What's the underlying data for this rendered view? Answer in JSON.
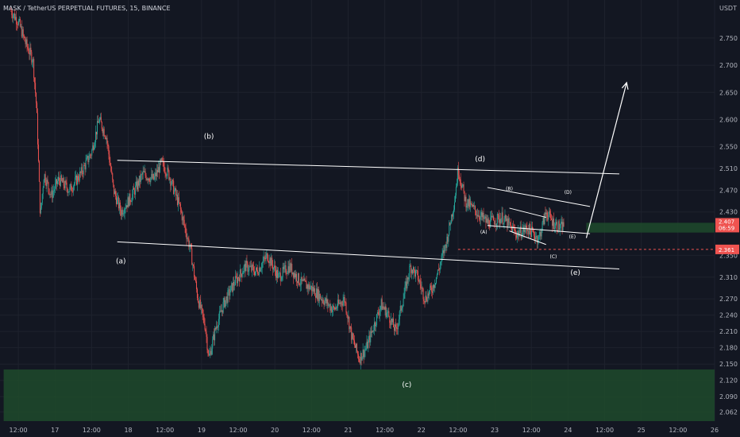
{
  "chart_data": {
    "type": "candlestick",
    "title": "MASK / TetherUS PERPETUAL FUTURES, 15, BINANCE",
    "currency": "USDT",
    "y_ticks": [
      "2.750",
      "2.700",
      "2.650",
      "2.600",
      "2.550",
      "2.510",
      "2.470",
      "2.430",
      "2.350",
      "2.310",
      "2.270",
      "2.240",
      "2.210",
      "2.180",
      "2.150",
      "2.120",
      "2.090",
      "2.062"
    ],
    "x_ticks": [
      "12:00",
      "17",
      "12:00",
      "18",
      "12:00",
      "19",
      "12:00",
      "20",
      "12:00",
      "21",
      "12:00",
      "22",
      "12:00",
      "23",
      "12:00",
      "24",
      "12:00",
      "25",
      "12:00",
      "26"
    ],
    "ylim": [
      2.045,
      2.82
    ],
    "current_price": "2.407",
    "countdown": "06:59",
    "marked_price": "2.361",
    "wave_labels": {
      "major": [
        {
          "text": "(a)",
          "x": 1.4,
          "y": 2.335
        },
        {
          "text": "(b)",
          "x": 2.6,
          "y": 2.565
        },
        {
          "text": "(c)",
          "x": 5.3,
          "y": 2.108
        },
        {
          "text": "(d)",
          "x": 6.3,
          "y": 2.523
        },
        {
          "text": "(e)",
          "x": 7.6,
          "y": 2.314
        }
      ],
      "minor": [
        {
          "text": "(A)",
          "x": 6.35,
          "y": 2.39
        },
        {
          "text": "(B)",
          "x": 6.7,
          "y": 2.47
        },
        {
          "text": "(C)",
          "x": 7.3,
          "y": 2.345
        },
        {
          "text": "(D)",
          "x": 7.5,
          "y": 2.463
        },
        {
          "text": "(E)",
          "x": 7.56,
          "y": 2.381
        }
      ]
    },
    "trendlines": [
      {
        "name": "triangle-upper",
        "from": {
          "x": 1.35,
          "y": 2.525
        },
        "to": {
          "x": 8.2,
          "y": 2.5
        }
      },
      {
        "name": "triangle-lower",
        "from": {
          "x": 1.35,
          "y": 2.375
        },
        "to": {
          "x": 8.2,
          "y": 2.325
        }
      },
      {
        "name": "inner-upper",
        "from": {
          "x": 6.4,
          "y": 2.475
        },
        "to": {
          "x": 7.8,
          "y": 2.44
        }
      },
      {
        "name": "inner-lower",
        "from": {
          "x": 6.4,
          "y": 2.405
        },
        "to": {
          "x": 7.8,
          "y": 2.39
        }
      },
      {
        "name": "small-upper",
        "from": {
          "x": 6.7,
          "y": 2.437
        },
        "to": {
          "x": 7.2,
          "y": 2.42
        }
      },
      {
        "name": "small-lower",
        "from": {
          "x": 6.7,
          "y": 2.395
        },
        "to": {
          "x": 7.2,
          "y": 2.37
        }
      }
    ],
    "projection": [
      {
        "x": 7.75,
        "y": 2.382
      },
      {
        "x": 8.3,
        "y": 2.668
      }
    ],
    "zones": [
      {
        "name": "upper-supply-zone",
        "y_from": 2.392,
        "y_to": 2.41,
        "x_from": 7.75
      },
      {
        "name": "lower-demand-zone",
        "y_from": 2.045,
        "y_to": 2.14,
        "x_from": -0.2
      }
    ],
    "price_path": [
      [
        -0.1,
        2.8
      ],
      [
        0.0,
        2.78
      ],
      [
        0.1,
        2.74
      ],
      [
        0.2,
        2.71
      ],
      [
        0.25,
        2.62
      ],
      [
        0.3,
        2.42
      ],
      [
        0.35,
        2.5
      ],
      [
        0.45,
        2.46
      ],
      [
        0.55,
        2.49
      ],
      [
        0.7,
        2.47
      ],
      [
        0.85,
        2.5
      ],
      [
        1.0,
        2.54
      ],
      [
        1.1,
        2.6
      ],
      [
        1.2,
        2.57
      ],
      [
        1.3,
        2.47
      ],
      [
        1.4,
        2.43
      ],
      [
        1.55,
        2.46
      ],
      [
        1.7,
        2.5
      ],
      [
        1.85,
        2.49
      ],
      [
        1.95,
        2.52
      ],
      [
        2.05,
        2.5
      ],
      [
        2.2,
        2.44
      ],
      [
        2.35,
        2.36
      ],
      [
        2.45,
        2.27
      ],
      [
        2.55,
        2.22
      ],
      [
        2.6,
        2.16
      ],
      [
        2.7,
        2.22
      ],
      [
        2.8,
        2.26
      ],
      [
        2.95,
        2.3
      ],
      [
        3.1,
        2.33
      ],
      [
        3.25,
        2.32
      ],
      [
        3.4,
        2.35
      ],
      [
        3.55,
        2.31
      ],
      [
        3.7,
        2.33
      ],
      [
        3.85,
        2.3
      ],
      [
        4.0,
        2.29
      ],
      [
        4.15,
        2.27
      ],
      [
        4.3,
        2.25
      ],
      [
        4.45,
        2.27
      ],
      [
        4.55,
        2.2
      ],
      [
        4.65,
        2.16
      ],
      [
        4.75,
        2.18
      ],
      [
        4.85,
        2.22
      ],
      [
        4.95,
        2.26
      ],
      [
        5.05,
        2.24
      ],
      [
        5.15,
        2.21
      ],
      [
        5.25,
        2.27
      ],
      [
        5.35,
        2.33
      ],
      [
        5.45,
        2.31
      ],
      [
        5.55,
        2.27
      ],
      [
        5.65,
        2.29
      ],
      [
        5.75,
        2.33
      ],
      [
        5.85,
        2.38
      ],
      [
        5.95,
        2.45
      ],
      [
        6.0,
        2.51
      ],
      [
        6.1,
        2.45
      ],
      [
        6.25,
        2.43
      ],
      [
        6.4,
        2.41
      ],
      [
        6.6,
        2.42
      ],
      [
        6.8,
        2.39
      ],
      [
        6.95,
        2.4
      ],
      [
        7.1,
        2.38
      ],
      [
        7.2,
        2.43
      ],
      [
        7.3,
        2.41
      ],
      [
        7.4,
        2.4
      ],
      [
        7.45,
        2.407
      ]
    ]
  }
}
